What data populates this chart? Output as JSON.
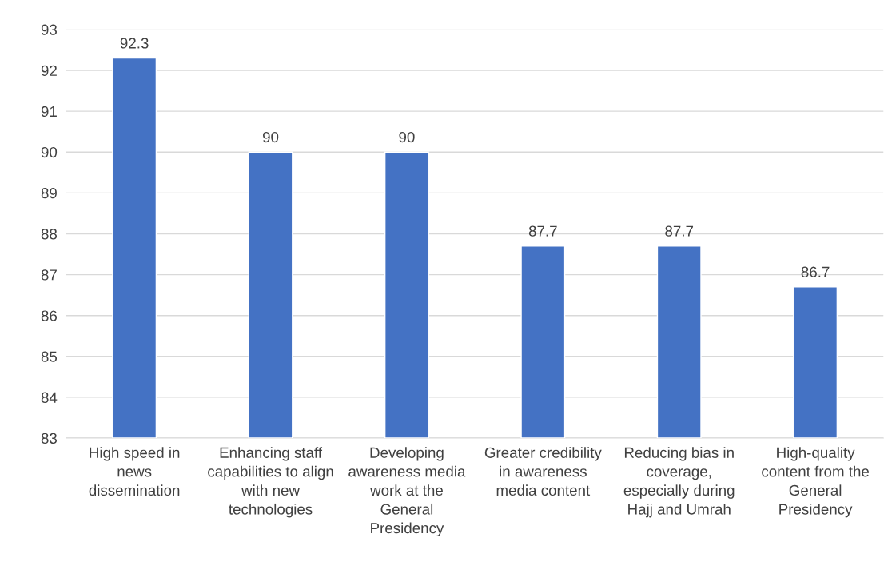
{
  "chart_data": {
    "type": "bar",
    "categories": [
      "High speed in news dissemination",
      "Enhancing staff capabilities to align with new technologies",
      "Developing awareness media work at the General Presidency",
      "Greater credibility in awareness media content",
      "Reducing bias in coverage, especially during Hajj and Umrah",
      "High-quality content from the General Presidency"
    ],
    "values": [
      92.3,
      90,
      90,
      87.7,
      87.7,
      86.7
    ],
    "color": "#4472c4",
    "ylim": [
      83,
      93
    ],
    "yticks": [
      83,
      84,
      85,
      86,
      87,
      88,
      89,
      90,
      91,
      92,
      93
    ],
    "grid": "y",
    "data_labels": true,
    "legend": false
  }
}
